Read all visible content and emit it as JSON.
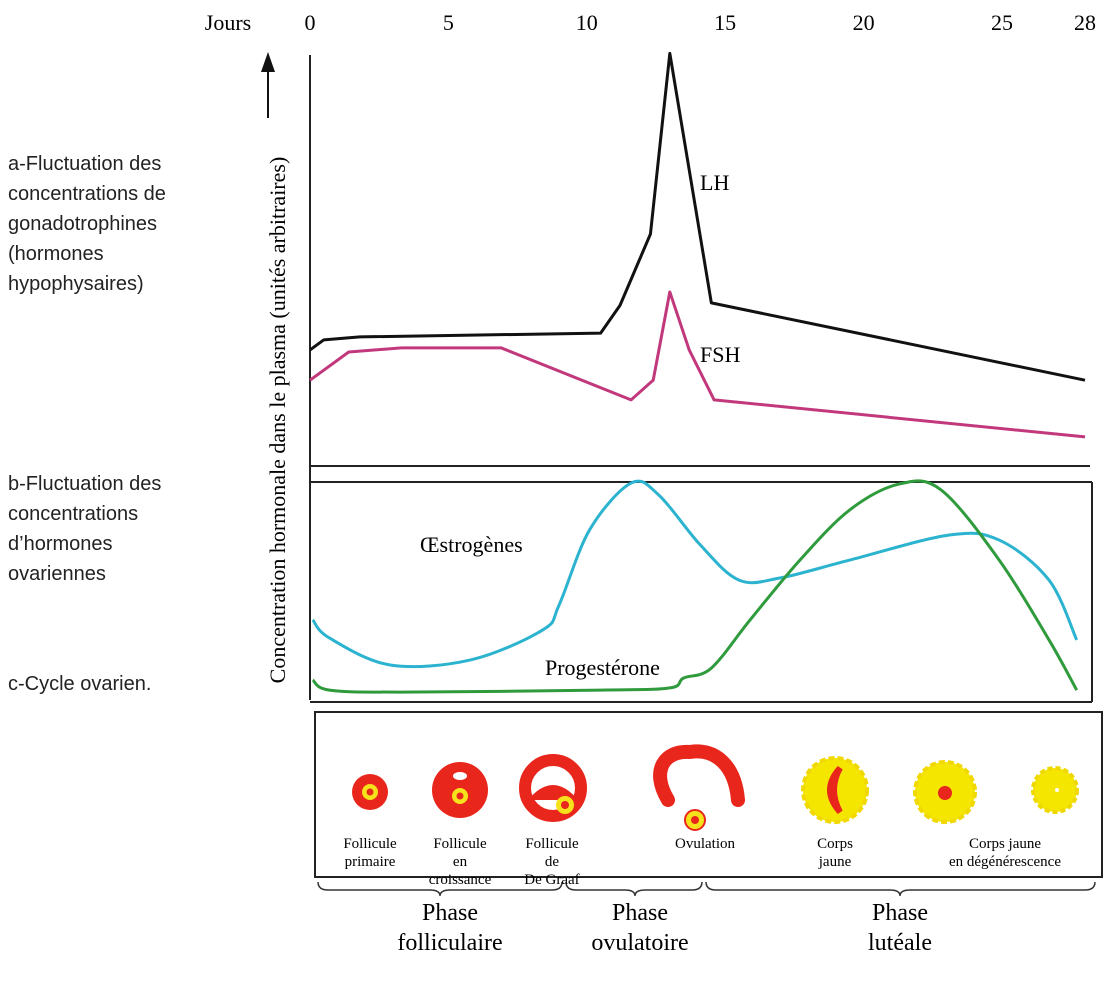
{
  "header": {
    "x_title": "Jours",
    "y_title": "Concentration hormonale dans le plasma (unités arbitraires)"
  },
  "panel_labels": [
    [
      "a-Fluctuation des",
      "concentrations de",
      "gonadotrophines",
      "(hormones",
      "hypophysaires)"
    ],
    [
      "b-Fluctuation des",
      "concentrations",
      "d’hormones",
      "ovariennes"
    ],
    [
      "c-Cycle ovarien."
    ]
  ],
  "chart_data": [
    {
      "type": "line",
      "xlim": [
        0,
        28
      ],
      "xticks": [
        0,
        5,
        10,
        15,
        20,
        25,
        28
      ],
      "ylim": [
        0,
        100
      ],
      "series": [
        {
          "name": "LH",
          "color": "#111111",
          "smooth": false,
          "x": [
            0,
            0.5,
            1.8,
            10.5,
            11.2,
            12.3,
            13,
            14.5,
            28
          ],
          "values": [
            27.4,
            29.8,
            30.5,
            31.4,
            38,
            55,
            98,
            38.6,
            20.2
          ]
        },
        {
          "name": "FSH",
          "color": "#c2387c",
          "smooth": false,
          "x": [
            0,
            1.4,
            3.3,
            6.9,
            11.6,
            12.4,
            13,
            13.7,
            14.6,
            28
          ],
          "values": [
            20.2,
            26.9,
            27.9,
            27.9,
            15.5,
            20.2,
            41.2,
            27.4,
            15.5,
            6.7
          ]
        }
      ]
    },
    {
      "type": "line",
      "xlim": [
        0,
        28
      ],
      "ylim": [
        0,
        100
      ],
      "series": [
        {
          "name": "Œstrogènes",
          "color": "#2bb3cf",
          "smooth": true,
          "x": [
            0.1,
            0.7,
            2.9,
            5.8,
            8.4,
            9,
            10.1,
            11.6,
            12.6,
            14.1,
            15.5,
            17,
            19.5,
            23.1,
            24.9,
            26.7,
            27.7
          ],
          "values": [
            36.4,
            28.2,
            15.9,
            18.2,
            31.8,
            43.2,
            77.3,
            98.6,
            93.2,
            70.5,
            54.5,
            55.5,
            63.6,
            75,
            72.7,
            54.5,
            27.3
          ]
        },
        {
          "name": "Progestérone",
          "color": "#2f9b3c",
          "smooth": true,
          "x": [
            0.1,
            0.7,
            3.3,
            10.5,
            13,
            13.5,
            14.5,
            15.9,
            17.7,
            19.5,
            21.3,
            22.8,
            24.9,
            26.7,
            27.7
          ],
          "values": [
            9.1,
            4.5,
            3.6,
            4.5,
            5.5,
            10,
            14.5,
            36.4,
            63.6,
            86.4,
            98.2,
            95.5,
            63.6,
            27.3,
            4.5
          ]
        }
      ]
    }
  ],
  "stages": [
    [
      "Follicule",
      "primaire"
    ],
    [
      "Follicule",
      "en",
      "croissance"
    ],
    [
      "Follicule",
      "de",
      "De Graaf"
    ],
    [
      "Ovulation"
    ],
    [
      "Corps",
      "jaune"
    ],
    [
      "Corps  jaune",
      "en dégénérescence"
    ]
  ],
  "phases": [
    [
      "Phase",
      "folliculaire"
    ],
    [
      "Phase",
      "ovulatoire"
    ],
    [
      "Phase",
      "lutéale"
    ]
  ]
}
